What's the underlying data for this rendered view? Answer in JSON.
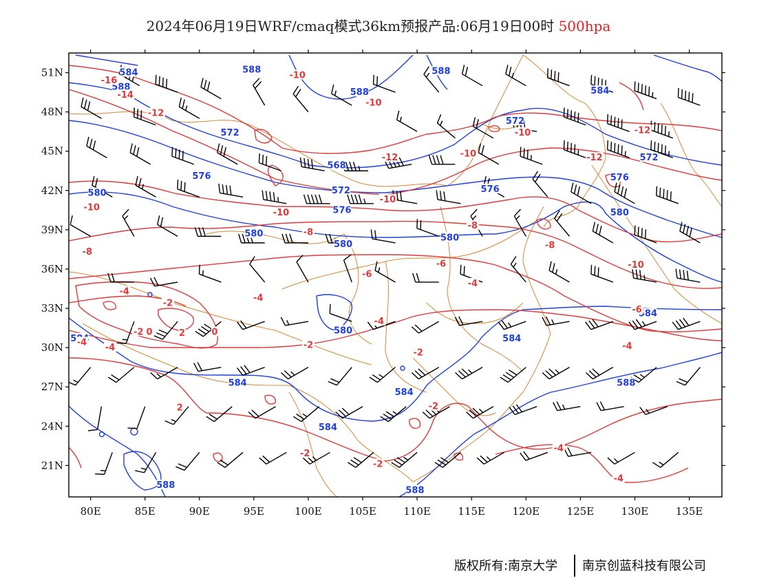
{
  "header": {
    "title": "2024年06月19日WRF/cmaq模式36km预报产品:06月19日00时",
    "level": "500hpa"
  },
  "axes": {
    "lat_labels": [
      "51N",
      "48N",
      "45N",
      "42N",
      "39N",
      "36N",
      "33N",
      "30N",
      "27N",
      "24N",
      "21N"
    ],
    "lat_values": [
      51,
      48,
      45,
      42,
      39,
      36,
      33,
      30,
      27,
      24,
      21
    ],
    "lon_labels": [
      "80E",
      "85E",
      "90E",
      "95E",
      "100E",
      "105E",
      "110E",
      "115E",
      "120E",
      "125E",
      "130E",
      "135E"
    ],
    "lon_values": [
      80,
      85,
      90,
      95,
      100,
      105,
      110,
      115,
      120,
      125,
      130,
      135
    ],
    "lon_range": [
      78,
      138
    ],
    "lat_range": [
      18.6,
      52.5
    ]
  },
  "colors": {
    "height_contour": "#1f3fe0",
    "temperature_contour": "#e03a3a",
    "border": "#d9892f",
    "wind_barb": "#000000"
  },
  "height_labels": [
    {
      "text": "584",
      "lon": 83.5,
      "lat": 51.0
    },
    {
      "text": "588",
      "lon": 82.8,
      "lat": 49.9
    },
    {
      "text": "588",
      "lon": 94.8,
      "lat": 51.2
    },
    {
      "text": "588",
      "lon": 104.7,
      "lat": 49.5
    },
    {
      "text": "588",
      "lon": 112.2,
      "lat": 51.1
    },
    {
      "text": "584",
      "lon": 126.8,
      "lat": 49.6
    },
    {
      "text": "572",
      "lon": 119.0,
      "lat": 47.3
    },
    {
      "text": "572",
      "lon": 92.8,
      "lat": 46.4
    },
    {
      "text": "568",
      "lon": 102.6,
      "lat": 43.9
    },
    {
      "text": "576",
      "lon": 90.2,
      "lat": 43.1
    },
    {
      "text": "572",
      "lon": 103.0,
      "lat": 42.0
    },
    {
      "text": "576",
      "lon": 103.1,
      "lat": 40.5
    },
    {
      "text": "576",
      "lon": 116.7,
      "lat": 42.1
    },
    {
      "text": "572",
      "lon": 131.3,
      "lat": 44.5
    },
    {
      "text": "576",
      "lon": 128.6,
      "lat": 43.0
    },
    {
      "text": "580",
      "lon": 80.6,
      "lat": 41.8
    },
    {
      "text": "580",
      "lon": 128.6,
      "lat": 40.3
    },
    {
      "text": "580",
      "lon": 95.0,
      "lat": 38.7
    },
    {
      "text": "580",
      "lon": 103.2,
      "lat": 37.9
    },
    {
      "text": "580",
      "lon": 113.0,
      "lat": 38.4
    },
    {
      "text": "580",
      "lon": 103.2,
      "lat": 31.3
    },
    {
      "text": "584",
      "lon": 118.7,
      "lat": 30.7
    },
    {
      "text": "584",
      "lon": 131.2,
      "lat": 32.6
    },
    {
      "text": "584",
      "lon": 79.0,
      "lat": 30.7
    },
    {
      "text": "584",
      "lon": 93.5,
      "lat": 27.3
    },
    {
      "text": "584",
      "lon": 108.8,
      "lat": 26.6
    },
    {
      "text": "588",
      "lon": 129.2,
      "lat": 27.3
    },
    {
      "text": "584",
      "lon": 101.8,
      "lat": 23.9
    },
    {
      "text": "588",
      "lon": 86.9,
      "lat": 19.5
    },
    {
      "text": "588",
      "lon": 109.8,
      "lat": 19.1
    }
  ],
  "temperature_labels": [
    {
      "text": "-16",
      "lon": 81.7,
      "lat": 50.4
    },
    {
      "text": "-14",
      "lon": 83.2,
      "lat": 49.3
    },
    {
      "text": "-12",
      "lon": 86.0,
      "lat": 47.9
    },
    {
      "text": "-10",
      "lon": 99.0,
      "lat": 50.8
    },
    {
      "text": "-10",
      "lon": 106.0,
      "lat": 48.7
    },
    {
      "text": "-10",
      "lon": 119.7,
      "lat": 46.4
    },
    {
      "text": "-12",
      "lon": 130.7,
      "lat": 46.6
    },
    {
      "text": "-12",
      "lon": 107.5,
      "lat": 44.5
    },
    {
      "text": "-10",
      "lon": 114.7,
      "lat": 44.8
    },
    {
      "text": "-12",
      "lon": 126.3,
      "lat": 44.5
    },
    {
      "text": "-10",
      "lon": 80.1,
      "lat": 40.7
    },
    {
      "text": "-10",
      "lon": 107.3,
      "lat": 41.3
    },
    {
      "text": "-10",
      "lon": 97.5,
      "lat": 40.3
    },
    {
      "text": "-8",
      "lon": 100.0,
      "lat": 38.8
    },
    {
      "text": "-8",
      "lon": 115.1,
      "lat": 39.3
    },
    {
      "text": "-8",
      "lon": 79.7,
      "lat": 37.3
    },
    {
      "text": "-8",
      "lon": 122.2,
      "lat": 37.8
    },
    {
      "text": "-6",
      "lon": 112.2,
      "lat": 36.4
    },
    {
      "text": "-10",
      "lon": 130.1,
      "lat": 36.3
    },
    {
      "text": "-6",
      "lon": 105.4,
      "lat": 35.6
    },
    {
      "text": "-4",
      "lon": 83.1,
      "lat": 34.3
    },
    {
      "text": "-2",
      "lon": 87.1,
      "lat": 33.4
    },
    {
      "text": "-4",
      "lon": 95.4,
      "lat": 33.8
    },
    {
      "text": "-4",
      "lon": 115.1,
      "lat": 34.9
    },
    {
      "text": "-6",
      "lon": 130.2,
      "lat": 32.9
    },
    {
      "text": "-2",
      "lon": 84.4,
      "lat": 31.2
    },
    {
      "text": "0",
      "lon": 85.4,
      "lat": 31.2
    },
    {
      "text": "2",
      "lon": 88.4,
      "lat": 31.1
    },
    {
      "text": "0",
      "lon": 91.4,
      "lat": 31.2
    },
    {
      "text": "-4",
      "lon": 106.5,
      "lat": 32.0
    },
    {
      "text": "-4",
      "lon": 79.2,
      "lat": 30.4
    },
    {
      "text": "-4",
      "lon": 81.8,
      "lat": 30.0
    },
    {
      "text": "-2",
      "lon": 100.0,
      "lat": 30.2
    },
    {
      "text": "-2",
      "lon": 110.1,
      "lat": 29.6
    },
    {
      "text": "-4",
      "lon": 129.3,
      "lat": 30.1
    },
    {
      "text": "2",
      "lon": 88.2,
      "lat": 25.4
    },
    {
      "text": "-2",
      "lon": 111.5,
      "lat": 25.5
    },
    {
      "text": "-2",
      "lon": 99.7,
      "lat": 21.9
    },
    {
      "text": "-4",
      "lon": 123.0,
      "lat": 22.3
    },
    {
      "text": "-2",
      "lon": 106.4,
      "lat": 21.1
    },
    {
      "text": "-4",
      "lon": 128.5,
      "lat": 20.0
    }
  ],
  "wind_barbs": [
    {
      "lon": 84.5,
      "lat": 50.0,
      "dir": 300,
      "kt": 50
    },
    {
      "lon": 88.0,
      "lat": 49.5,
      "dir": 290,
      "kt": 40
    },
    {
      "lon": 92.0,
      "lat": 49.0,
      "dir": 300,
      "kt": 30
    },
    {
      "lon": 96.0,
      "lat": 48.5,
      "dir": 330,
      "kt": 20
    },
    {
      "lon": 100.0,
      "lat": 48.0,
      "dir": 320,
      "kt": 20
    },
    {
      "lon": 104.0,
      "lat": 48.5,
      "dir": 300,
      "kt": 15
    },
    {
      "lon": 108.0,
      "lat": 49.5,
      "dir": 290,
      "kt": 20
    },
    {
      "lon": 112.0,
      "lat": 49.5,
      "dir": 320,
      "kt": 15
    },
    {
      "lon": 116.0,
      "lat": 50.0,
      "dir": 300,
      "kt": 20
    },
    {
      "lon": 120.0,
      "lat": 50.0,
      "dir": 300,
      "kt": 25
    },
    {
      "lon": 124.0,
      "lat": 50.0,
      "dir": 290,
      "kt": 40
    },
    {
      "lon": 128.0,
      "lat": 49.5,
      "dir": 290,
      "kt": 50
    },
    {
      "lon": 132.0,
      "lat": 49.0,
      "dir": 290,
      "kt": 55
    },
    {
      "lon": 136.0,
      "lat": 48.5,
      "dir": 290,
      "kt": 50
    },
    {
      "lon": 81.0,
      "lat": 47.5,
      "dir": 300,
      "kt": 30
    },
    {
      "lon": 86.0,
      "lat": 47.0,
      "dir": 290,
      "kt": 30
    },
    {
      "lon": 90.0,
      "lat": 47.5,
      "dir": 300,
      "kt": 25
    },
    {
      "lon": 110.0,
      "lat": 46.5,
      "dir": 300,
      "kt": 15
    },
    {
      "lon": 113.5,
      "lat": 46.0,
      "dir": 310,
      "kt": 15
    },
    {
      "lon": 117.0,
      "lat": 46.0,
      "dir": 300,
      "kt": 20
    },
    {
      "lon": 121.0,
      "lat": 46.5,
      "dir": 280,
      "kt": 40
    },
    {
      "lon": 125.5,
      "lat": 47.0,
      "dir": 290,
      "kt": 50
    },
    {
      "lon": 129.5,
      "lat": 46.5,
      "dir": 290,
      "kt": 50
    },
    {
      "lon": 133.5,
      "lat": 46.0,
      "dir": 290,
      "kt": 55
    },
    {
      "lon": 81.5,
      "lat": 44.5,
      "dir": 300,
      "kt": 30
    },
    {
      "lon": 85.5,
      "lat": 44.0,
      "dir": 300,
      "kt": 30
    },
    {
      "lon": 89.5,
      "lat": 44.0,
      "dir": 290,
      "kt": 40
    },
    {
      "lon": 93.5,
      "lat": 44.0,
      "dir": 300,
      "kt": 30
    },
    {
      "lon": 97.5,
      "lat": 43.5,
      "dir": 290,
      "kt": 30
    },
    {
      "lon": 101.5,
      "lat": 43.5,
      "dir": 280,
      "kt": 40
    },
    {
      "lon": 105.5,
      "lat": 43.5,
      "dir": 270,
      "kt": 45
    },
    {
      "lon": 109.5,
      "lat": 44.0,
      "dir": 260,
      "kt": 50
    },
    {
      "lon": 113.5,
      "lat": 44.0,
      "dir": 270,
      "kt": 40
    },
    {
      "lon": 117.5,
      "lat": 44.0,
      "dir": 300,
      "kt": 20
    },
    {
      "lon": 121.5,
      "lat": 44.0,
      "dir": 290,
      "kt": 35
    },
    {
      "lon": 125.5,
      "lat": 44.5,
      "dir": 290,
      "kt": 45
    },
    {
      "lon": 129.5,
      "lat": 44.5,
      "dir": 290,
      "kt": 55
    },
    {
      "lon": 133.5,
      "lat": 44.5,
      "dir": 290,
      "kt": 55
    },
    {
      "lon": 82.0,
      "lat": 41.5,
      "dir": 300,
      "kt": 20
    },
    {
      "lon": 86.0,
      "lat": 41.5,
      "dir": 300,
      "kt": 25
    },
    {
      "lon": 90.0,
      "lat": 41.5,
      "dir": 290,
      "kt": 30
    },
    {
      "lon": 94.0,
      "lat": 41.5,
      "dir": 280,
      "kt": 40
    },
    {
      "lon": 98.0,
      "lat": 41.0,
      "dir": 280,
      "kt": 45
    },
    {
      "lon": 102.0,
      "lat": 41.0,
      "dir": 270,
      "kt": 50
    },
    {
      "lon": 106.0,
      "lat": 41.0,
      "dir": 270,
      "kt": 45
    },
    {
      "lon": 110.0,
      "lat": 41.0,
      "dir": 280,
      "kt": 30
    },
    {
      "lon": 114.0,
      "lat": 41.0,
      "dir": 280,
      "kt": 30
    },
    {
      "lon": 118.0,
      "lat": 41.5,
      "dir": 300,
      "kt": 20
    },
    {
      "lon": 122.0,
      "lat": 41.5,
      "dir": 320,
      "kt": 20
    },
    {
      "lon": 126.0,
      "lat": 41.0,
      "dir": 300,
      "kt": 30
    },
    {
      "lon": 130.0,
      "lat": 41.0,
      "dir": 300,
      "kt": 40
    },
    {
      "lon": 134.0,
      "lat": 41.0,
      "dir": 290,
      "kt": 50
    },
    {
      "lon": 80.0,
      "lat": 38.5,
      "dir": 300,
      "kt": 10
    },
    {
      "lon": 84.0,
      "lat": 38.5,
      "dir": 330,
      "kt": 15
    },
    {
      "lon": 88.0,
      "lat": 38.5,
      "dir": 300,
      "kt": 20
    },
    {
      "lon": 92.0,
      "lat": 38.5,
      "dir": 270,
      "kt": 30
    },
    {
      "lon": 96.0,
      "lat": 38.0,
      "dir": 270,
      "kt": 40
    },
    {
      "lon": 100.0,
      "lat": 38.0,
      "dir": 270,
      "kt": 30
    },
    {
      "lon": 104.0,
      "lat": 38.0,
      "dir": 270,
      "kt": 25
    },
    {
      "lon": 108.0,
      "lat": 38.0,
      "dir": 280,
      "kt": 20
    },
    {
      "lon": 112.0,
      "lat": 38.5,
      "dir": 290,
      "kt": 20
    },
    {
      "lon": 116.0,
      "lat": 38.5,
      "dir": 330,
      "kt": 15
    },
    {
      "lon": 120.0,
      "lat": 38.5,
      "dir": 330,
      "kt": 15
    },
    {
      "lon": 124.0,
      "lat": 38.5,
      "dir": 320,
      "kt": 20
    },
    {
      "lon": 128.0,
      "lat": 38.0,
      "dir": 300,
      "kt": 30
    },
    {
      "lon": 132.0,
      "lat": 38.0,
      "dir": 290,
      "kt": 40
    },
    {
      "lon": 136.0,
      "lat": 38.0,
      "dir": 300,
      "kt": 40
    },
    {
      "lon": 84.0,
      "lat": 35.0,
      "dir": 270,
      "kt": 20
    },
    {
      "lon": 88.0,
      "lat": 35.0,
      "dir": 260,
      "kt": 20
    },
    {
      "lon": 92.0,
      "lat": 35.0,
      "dir": 290,
      "kt": 15
    },
    {
      "lon": 96.0,
      "lat": 35.0,
      "dir": 320,
      "kt": 10
    },
    {
      "lon": 100.0,
      "lat": 35.0,
      "dir": 330,
      "kt": 10
    },
    {
      "lon": 104.0,
      "lat": 35.0,
      "dir": 340,
      "kt": 10
    },
    {
      "lon": 108.0,
      "lat": 35.0,
      "dir": 300,
      "kt": 15
    },
    {
      "lon": 112.0,
      "lat": 35.0,
      "dir": 270,
      "kt": 20
    },
    {
      "lon": 116.0,
      "lat": 35.0,
      "dir": 290,
      "kt": 20
    },
    {
      "lon": 120.0,
      "lat": 35.0,
      "dir": 320,
      "kt": 15
    },
    {
      "lon": 124.0,
      "lat": 35.0,
      "dir": 300,
      "kt": 25
    },
    {
      "lon": 128.0,
      "lat": 35.0,
      "dir": 290,
      "kt": 30
    },
    {
      "lon": 132.0,
      "lat": 35.0,
      "dir": 280,
      "kt": 35
    },
    {
      "lon": 136.0,
      "lat": 35.0,
      "dir": 280,
      "kt": 40
    },
    {
      "lon": 84.0,
      "lat": 32.0,
      "dir": 200,
      "kt": 15
    },
    {
      "lon": 88.0,
      "lat": 32.0,
      "dir": 220,
      "kt": 30
    },
    {
      "lon": 92.0,
      "lat": 32.0,
      "dir": 230,
      "kt": 40
    },
    {
      "lon": 96.0,
      "lat": 32.0,
      "dir": 250,
      "kt": 20
    },
    {
      "lon": 100.0,
      "lat": 32.0,
      "dir": 260,
      "kt": 15
    },
    {
      "lon": 104.0,
      "lat": 32.0,
      "dir": 290,
      "kt": 10
    },
    {
      "lon": 108.0,
      "lat": 32.0,
      "dir": 250,
      "kt": 15
    },
    {
      "lon": 112.0,
      "lat": 32.0,
      "dir": 240,
      "kt": 20
    },
    {
      "lon": 116.0,
      "lat": 32.0,
      "dir": 260,
      "kt": 20
    },
    {
      "lon": 120.0,
      "lat": 32.0,
      "dir": 250,
      "kt": 25
    },
    {
      "lon": 124.0,
      "lat": 32.0,
      "dir": 260,
      "kt": 25
    },
    {
      "lon": 128.0,
      "lat": 32.0,
      "dir": 250,
      "kt": 30
    },
    {
      "lon": 132.0,
      "lat": 32.0,
      "dir": 250,
      "kt": 35
    },
    {
      "lon": 136.0,
      "lat": 32.0,
      "dir": 250,
      "kt": 40
    },
    {
      "lon": 80.0,
      "lat": 28.5,
      "dir": 220,
      "kt": 15
    },
    {
      "lon": 84.0,
      "lat": 28.5,
      "dir": 230,
      "kt": 20
    },
    {
      "lon": 88.0,
      "lat": 28.5,
      "dir": 240,
      "kt": 15
    },
    {
      "lon": 92.0,
      "lat": 28.5,
      "dir": 260,
      "kt": 20
    },
    {
      "lon": 96.0,
      "lat": 28.5,
      "dir": 250,
      "kt": 30
    },
    {
      "lon": 100.0,
      "lat": 28.5,
      "dir": 240,
      "kt": 25
    },
    {
      "lon": 104.0,
      "lat": 28.5,
      "dir": 220,
      "kt": 20
    },
    {
      "lon": 108.0,
      "lat": 28.5,
      "dir": 230,
      "kt": 25
    },
    {
      "lon": 112.0,
      "lat": 28.5,
      "dir": 240,
      "kt": 30
    },
    {
      "lon": 116.0,
      "lat": 28.5,
      "dir": 240,
      "kt": 35
    },
    {
      "lon": 120.0,
      "lat": 28.5,
      "dir": 230,
      "kt": 40
    },
    {
      "lon": 124.0,
      "lat": 28.5,
      "dir": 240,
      "kt": 35
    },
    {
      "lon": 128.0,
      "lat": 28.5,
      "dir": 240,
      "kt": 30
    },
    {
      "lon": 132.0,
      "lat": 28.5,
      "dir": 230,
      "kt": 25
    },
    {
      "lon": 136.0,
      "lat": 28.5,
      "dir": 220,
      "kt": 20
    },
    {
      "lon": 81.0,
      "lat": 25.5,
      "dir": 190,
      "kt": 10
    },
    {
      "lon": 85.0,
      "lat": 25.5,
      "dir": 200,
      "kt": 10
    },
    {
      "lon": 89.0,
      "lat": 25.5,
      "dir": 220,
      "kt": 15
    },
    {
      "lon": 93.0,
      "lat": 25.5,
      "dir": 230,
      "kt": 20
    },
    {
      "lon": 97.0,
      "lat": 25.5,
      "dir": 240,
      "kt": 20
    },
    {
      "lon": 101.0,
      "lat": 25.5,
      "dir": 230,
      "kt": 25
    },
    {
      "lon": 105.0,
      "lat": 25.5,
      "dir": 240,
      "kt": 30
    },
    {
      "lon": 109.0,
      "lat": 25.5,
      "dir": 230,
      "kt": 35
    },
    {
      "lon": 113.0,
      "lat": 25.5,
      "dir": 240,
      "kt": 40
    },
    {
      "lon": 117.0,
      "lat": 25.5,
      "dir": 240,
      "kt": 35
    },
    {
      "lon": 121.0,
      "lat": 25.5,
      "dir": 250,
      "kt": 30
    },
    {
      "lon": 125.0,
      "lat": 25.5,
      "dir": 260,
      "kt": 25
    },
    {
      "lon": 129.0,
      "lat": 25.5,
      "dir": 260,
      "kt": 20
    },
    {
      "lon": 133.0,
      "lat": 25.5,
      "dir": 250,
      "kt": 15
    },
    {
      "lon": 82.0,
      "lat": 22.0,
      "dir": 200,
      "kt": 15
    },
    {
      "lon": 86.0,
      "lat": 22.0,
      "dir": 210,
      "kt": 15
    },
    {
      "lon": 90.0,
      "lat": 22.0,
      "dir": 220,
      "kt": 20
    },
    {
      "lon": 94.0,
      "lat": 22.0,
      "dir": 230,
      "kt": 20
    },
    {
      "lon": 98.0,
      "lat": 22.0,
      "dir": 240,
      "kt": 20
    },
    {
      "lon": 102.0,
      "lat": 22.0,
      "dir": 240,
      "kt": 25
    },
    {
      "lon": 106.0,
      "lat": 22.0,
      "dir": 230,
      "kt": 30
    },
    {
      "lon": 110.0,
      "lat": 22.0,
      "dir": 230,
      "kt": 35
    },
    {
      "lon": 114.0,
      "lat": 22.0,
      "dir": 230,
      "kt": 30
    },
    {
      "lon": 118.0,
      "lat": 22.0,
      "dir": 240,
      "kt": 25
    },
    {
      "lon": 122.0,
      "lat": 22.0,
      "dir": 250,
      "kt": 20
    },
    {
      "lon": 126.0,
      "lat": 22.0,
      "dir": 260,
      "kt": 20
    },
    {
      "lon": 130.0,
      "lat": 22.0,
      "dir": 240,
      "kt": 15
    },
    {
      "lon": 134.0,
      "lat": 22.0,
      "dir": 230,
      "kt": 15
    }
  ],
  "footer": {
    "copyright": "版权所有:南京大学",
    "company": "南京创蓝科技有限公司"
  }
}
